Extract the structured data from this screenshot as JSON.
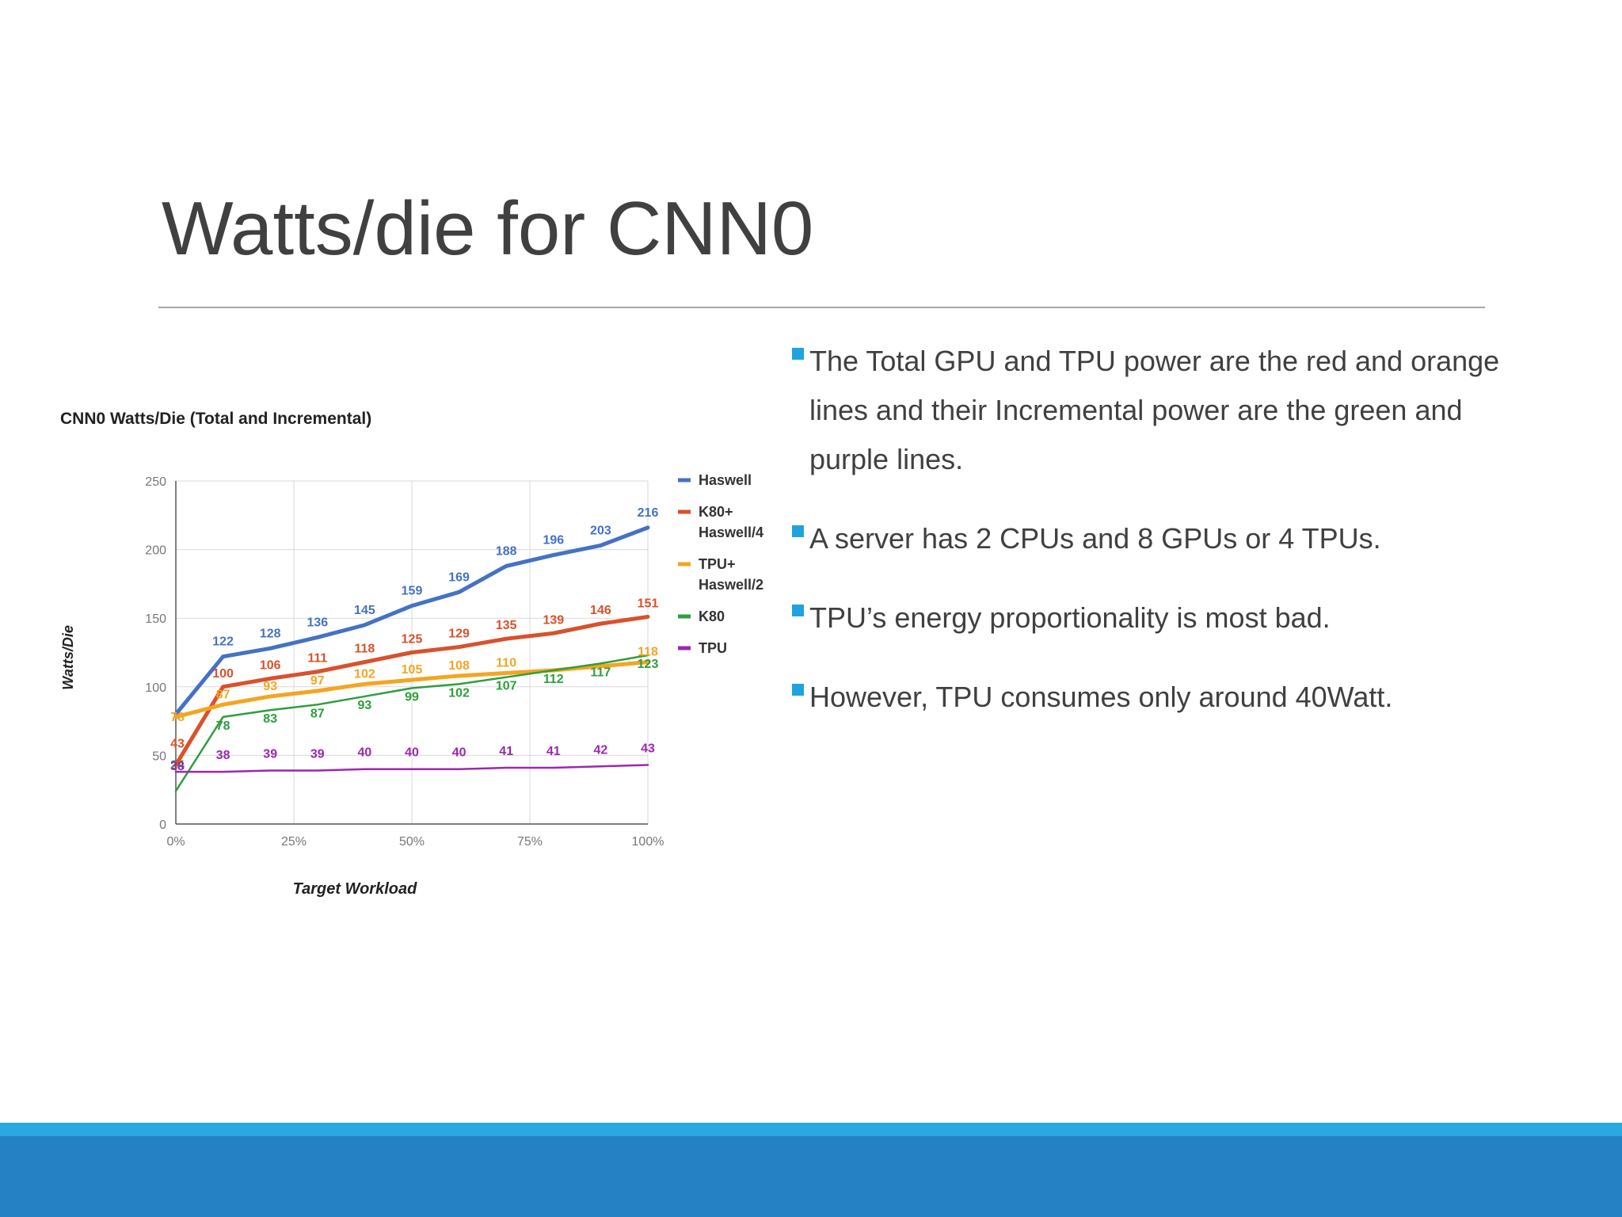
{
  "slide": {
    "title": "Watts/die for CNN0"
  },
  "bullets": [
    {
      "text": "The Total GPU and TPU power are the red and orange lines and their Incremental power are the green and purple lines."
    },
    {
      "text": "A server has 2 CPUs and 8 GPUs or 4 TPUs."
    },
    {
      "text": "TPU’s energy proportionality is most bad."
    },
    {
      "text": "However, TPU consumes only around 40Watt."
    }
  ],
  "colors": {
    "accent": "#1fa3de",
    "footer": "#2581c4",
    "footer_light": "#2aa8e0",
    "title_text": "#404040"
  },
  "chart_data": {
    "type": "line",
    "title": "CNN0 Watts/Die (Total and Incremental)",
    "xlabel": "Target Workload",
    "ylabel": "Watts/Die",
    "x": [
      0,
      10,
      20,
      30,
      40,
      50,
      60,
      70,
      80,
      90,
      100
    ],
    "x_ticks": [
      0,
      25,
      50,
      75,
      100
    ],
    "x_tick_labels": [
      "0%",
      "25%",
      "50%",
      "75%",
      "100%"
    ],
    "ylim": [
      0,
      250
    ],
    "y_ticks": [
      0,
      50,
      100,
      150,
      200,
      250
    ],
    "grid": true,
    "legend_position": "right",
    "series": [
      {
        "name": "Haswell",
        "color": "#4472c4",
        "values": [
          80,
          122,
          128,
          136,
          145,
          159,
          169,
          188,
          196,
          203,
          216
        ],
        "show_labels": [
          false,
          true,
          true,
          true,
          true,
          true,
          true,
          true,
          true,
          true,
          true
        ]
      },
      {
        "name": "K80+ Haswell/4",
        "color": "#d9512c",
        "values": [
          43,
          100,
          106,
          111,
          118,
          125,
          129,
          135,
          139,
          146,
          151
        ],
        "show_labels": [
          true,
          true,
          true,
          true,
          true,
          true,
          true,
          true,
          true,
          true,
          true
        ]
      },
      {
        "name": "TPU+ Haswell/2",
        "color": "#f4a521",
        "values": [
          78,
          87,
          93,
          97,
          102,
          105,
          108,
          110,
          112,
          115,
          118
        ],
        "show_labels": [
          true,
          true,
          true,
          true,
          true,
          true,
          true,
          true,
          false,
          false,
          true
        ]
      },
      {
        "name": "K80",
        "color": "#2e9e3e",
        "values": [
          24,
          78,
          83,
          87,
          93,
          99,
          102,
          107,
          112,
          117,
          123
        ],
        "show_labels": [
          true,
          true,
          true,
          true,
          true,
          true,
          true,
          true,
          true,
          true,
          true
        ]
      },
      {
        "name": "TPU",
        "color": "#9c27b0",
        "values": [
          38,
          38,
          39,
          39,
          40,
          40,
          40,
          41,
          41,
          42,
          43
        ],
        "show_labels": [
          true,
          true,
          true,
          true,
          true,
          true,
          true,
          true,
          true,
          true,
          true
        ]
      }
    ]
  }
}
